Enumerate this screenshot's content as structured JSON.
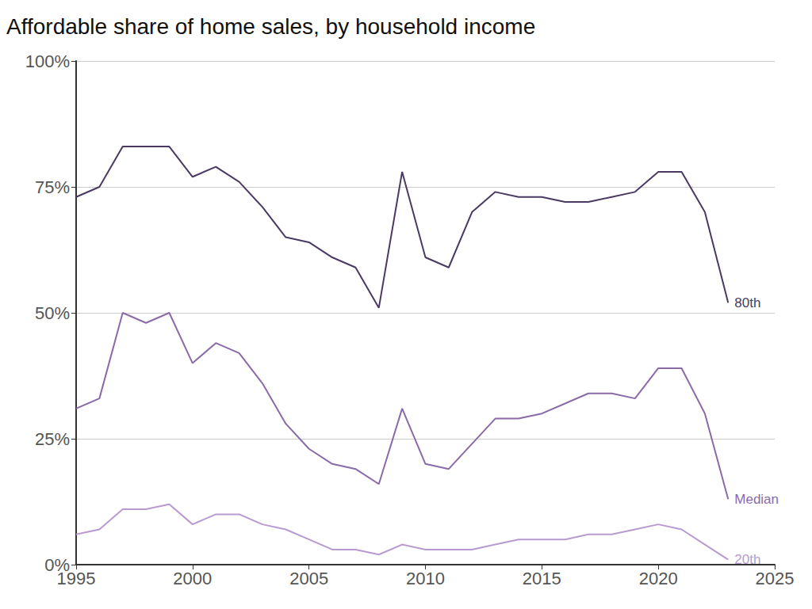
{
  "chart_data": {
    "type": "line",
    "title": "Affordable share of home sales, by household income",
    "x": [
      1995,
      1996,
      1997,
      1998,
      1999,
      2000,
      2001,
      2002,
      2003,
      2004,
      2005,
      2006,
      2007,
      2008,
      2009,
      2010,
      2011,
      2012,
      2013,
      2014,
      2015,
      2016,
      2017,
      2018,
      2019,
      2020,
      2021,
      2022,
      2023
    ],
    "series": [
      {
        "name": "80th",
        "color": "#4a3a63",
        "values": [
          73,
          75,
          83,
          83,
          83,
          77,
          79,
          76,
          71,
          65,
          64,
          61,
          59,
          51,
          78,
          61,
          59,
          70,
          74,
          73,
          73,
          72,
          72,
          73,
          74,
          78,
          78,
          70,
          52
        ]
      },
      {
        "name": "Median",
        "color": "#8a6aa8",
        "values": [
          31,
          33,
          50,
          48,
          50,
          40,
          44,
          42,
          36,
          28,
          23,
          20,
          19,
          16,
          31,
          20,
          19,
          24,
          29,
          29,
          30,
          32,
          34,
          34,
          33,
          39,
          39,
          30,
          13
        ]
      },
      {
        "name": "20th",
        "color": "#b89ad0",
        "values": [
          6,
          7,
          11,
          11,
          12,
          8,
          10,
          10,
          8,
          7,
          5,
          3,
          3,
          2,
          4,
          3,
          3,
          3,
          4,
          5,
          5,
          5,
          6,
          6,
          7,
          8,
          7,
          4,
          1
        ]
      }
    ],
    "xlim": [
      1995,
      2025
    ],
    "xticks": [
      1995,
      2000,
      2005,
      2010,
      2015,
      2020,
      2025
    ],
    "ylim": [
      0,
      100
    ],
    "yticks": [
      {
        "value": 0,
        "label": "0%"
      },
      {
        "value": 25,
        "label": "25%"
      },
      {
        "value": 50,
        "label": "50%"
      },
      {
        "value": 75,
        "label": "75%"
      },
      {
        "value": 100,
        "label": "100%"
      }
    ],
    "grid": true
  }
}
